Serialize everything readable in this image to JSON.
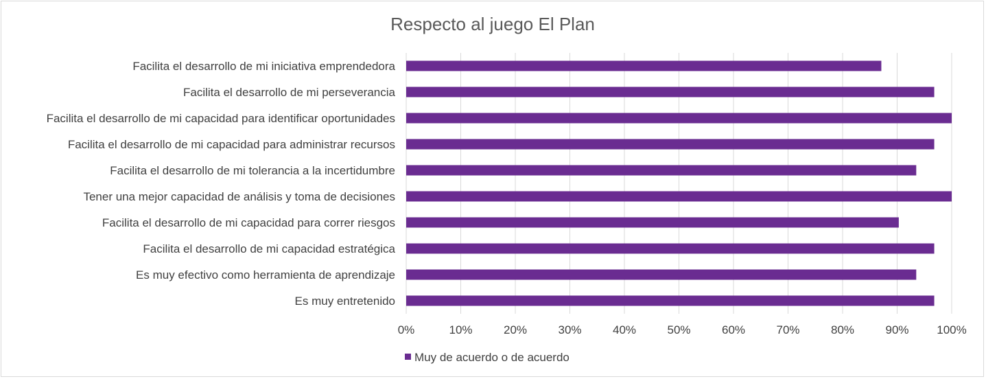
{
  "chart_data": {
    "type": "bar",
    "orientation": "horizontal",
    "title": "Respecto al juego El Plan",
    "categories": [
      "Facilita el desarrollo de mi iniciativa emprendedora",
      "Facilita el desarrollo de mi perseverancia",
      "Facilita el desarrollo de mi capacidad para identificar oportunidades",
      "Facilita el desarrollo de mi capacidad para administrar recursos",
      "Facilita el desarrollo de mi tolerancia a la incertidumbre",
      "Tener una mejor capacidad de análisis y toma de decisiones",
      "Facilita el desarrollo de mi capacidad para correr riesgos",
      "Facilita el desarrollo de mi capacidad estratégica",
      "Es muy efectivo como herramienta de aprendizaje",
      "Es muy entretenido"
    ],
    "series": [
      {
        "name": "Muy de acuerdo o de acuerdo",
        "color": "#6a2c91",
        "values": [
          0.871,
          0.968,
          1.0,
          0.968,
          0.935,
          1.0,
          0.903,
          0.968,
          0.935,
          0.968
        ]
      }
    ],
    "xlim": [
      0,
      1
    ],
    "xticks": [
      "0%",
      "10%",
      "20%",
      "30%",
      "40%",
      "50%",
      "60%",
      "70%",
      "80%",
      "90%",
      "100%"
    ],
    "grid": true,
    "legend_position": "bottom",
    "colors": {
      "bar": "#6a2c91",
      "grid": "#d9d9d9",
      "text": "#404040",
      "title": "#595959"
    }
  }
}
